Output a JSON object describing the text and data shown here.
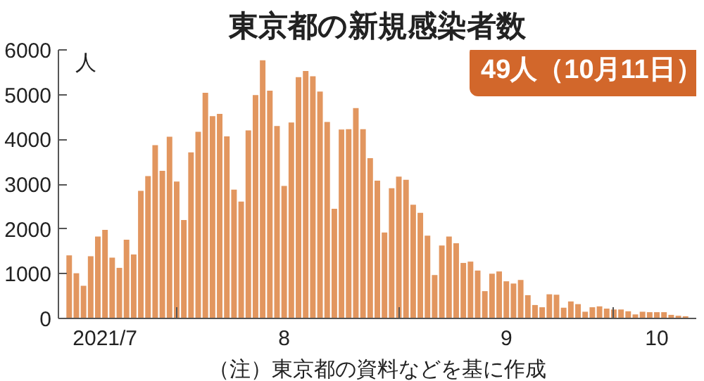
{
  "chart_data": {
    "type": "bar",
    "title": "東京都の新規感染者数",
    "ylabel": "人",
    "x": [
      "2021-07-17",
      "2021-07-18",
      "2021-07-19",
      "2021-07-20",
      "2021-07-21",
      "2021-07-22",
      "2021-07-23",
      "2021-07-24",
      "2021-07-25",
      "2021-07-26",
      "2021-07-27",
      "2021-07-28",
      "2021-07-29",
      "2021-07-30",
      "2021-07-31",
      "2021-08-01",
      "2021-08-02",
      "2021-08-03",
      "2021-08-04",
      "2021-08-05",
      "2021-08-06",
      "2021-08-07",
      "2021-08-08",
      "2021-08-09",
      "2021-08-10",
      "2021-08-11",
      "2021-08-12",
      "2021-08-13",
      "2021-08-14",
      "2021-08-15",
      "2021-08-16",
      "2021-08-17",
      "2021-08-18",
      "2021-08-19",
      "2021-08-20",
      "2021-08-21",
      "2021-08-22",
      "2021-08-23",
      "2021-08-24",
      "2021-08-25",
      "2021-08-26",
      "2021-08-27",
      "2021-08-28",
      "2021-08-29",
      "2021-08-30",
      "2021-08-31",
      "2021-09-01",
      "2021-09-02",
      "2021-09-03",
      "2021-09-04",
      "2021-09-05",
      "2021-09-06",
      "2021-09-07",
      "2021-09-08",
      "2021-09-09",
      "2021-09-10",
      "2021-09-11",
      "2021-09-12",
      "2021-09-13",
      "2021-09-14",
      "2021-09-15",
      "2021-09-16",
      "2021-09-17",
      "2021-09-18",
      "2021-09-19",
      "2021-09-20",
      "2021-09-21",
      "2021-09-22",
      "2021-09-23",
      "2021-09-24",
      "2021-09-25",
      "2021-09-26",
      "2021-09-27",
      "2021-09-28",
      "2021-09-29",
      "2021-09-30",
      "2021-10-01",
      "2021-10-02",
      "2021-10-03",
      "2021-10-04",
      "2021-10-05",
      "2021-10-06",
      "2021-10-07",
      "2021-10-08",
      "2021-10-09",
      "2021-10-10",
      "2021-10-11"
    ],
    "values": [
      1410,
      1010,
      730,
      1390,
      1830,
      1980,
      1360,
      1130,
      1760,
      1430,
      2850,
      3180,
      3870,
      3300,
      4060,
      3060,
      2200,
      3710,
      4170,
      5040,
      4520,
      4570,
      4070,
      2880,
      2610,
      4200,
      4990,
      5770,
      5090,
      4300,
      2960,
      4380,
      5390,
      5530,
      5410,
      5070,
      4390,
      2450,
      4220,
      4230,
      4700,
      4230,
      3580,
      3080,
      1920,
      2910,
      3170,
      3100,
      2540,
      2360,
      1850,
      970,
      1630,
      1830,
      1680,
      1240,
      1270,
      1070,
      610,
      1000,
      1050,
      830,
      780,
      860,
      520,
      300,
      250,
      540,
      530,
      240,
      380,
      320,
      150,
      250,
      270,
      220,
      200,
      200,
      160,
      90,
      150,
      140,
      140,
      140,
      80,
      60,
      49
    ],
    "color": "#e2965f",
    "xlim": [
      "2021-07-15T12:00",
      "2021-10-12T12:00"
    ],
    "xticks": [
      {
        "value": "2021-08-01",
        "label": null
      },
      {
        "value": "2021-09-01",
        "label": null
      },
      {
        "value": "2021-10-01",
        "label": null
      },
      {
        "value": "2021-07-22",
        "label": "2021/7"
      },
      {
        "value": "2021-08-16",
        "label": "8"
      },
      {
        "value": "2021-09-16",
        "label": "9"
      },
      {
        "value": "2021-10-07",
        "label": "10"
      }
    ],
    "ylim": [
      0,
      6000
    ],
    "yticks": [
      0,
      1000,
      2000,
      3000,
      4000,
      5000,
      6000
    ],
    "annotations": [
      "49人（10月11日）",
      "（注）東京都の資料などを基に作成"
    ]
  }
}
